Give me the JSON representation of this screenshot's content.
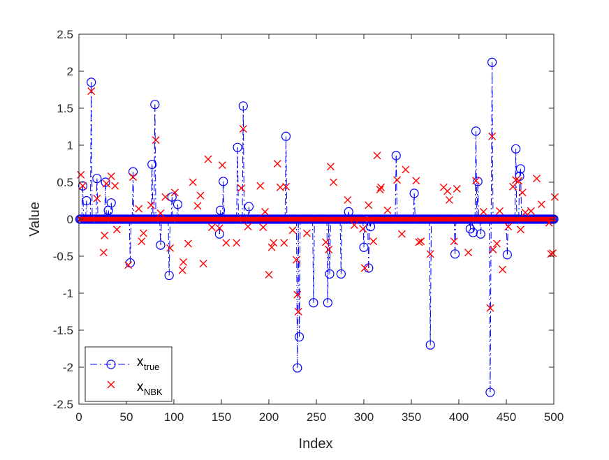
{
  "chart_data": {
    "type": "scatter",
    "title": "",
    "xlabel": "Index",
    "ylabel": "Value",
    "xlim": [
      0,
      500
    ],
    "ylim": [
      -2.5,
      2.5
    ],
    "xticks": [
      "0",
      "50",
      "100",
      "150",
      "200",
      "250",
      "300",
      "350",
      "400",
      "450",
      "500"
    ],
    "yticks": [
      "-2.5",
      "-2",
      "-1.5",
      "-1",
      "-0.5",
      "0",
      "0.5",
      "1",
      "1.5",
      "2",
      "2.5"
    ],
    "grid": false,
    "legend_position": "bottom-left",
    "colors": {
      "x_true": "#0000ff",
      "x_NBK": "#ff0000",
      "axis": "#262626"
    },
    "series": [
      {
        "name": "x_true",
        "label_main": "x",
        "label_sub": "true",
        "marker": "circle",
        "line": "dash-dot stems",
        "n": 500,
        "nonzero": [
          [
            4,
            0.45
          ],
          [
            8,
            0.25
          ],
          [
            13,
            1.85
          ],
          [
            19,
            0.55
          ],
          [
            28,
            0.5
          ],
          [
            31,
            0.12
          ],
          [
            34,
            0.22
          ],
          [
            54,
            -0.59
          ],
          [
            57,
            0.64
          ],
          [
            77,
            0.74
          ],
          [
            80,
            1.55
          ],
          [
            86,
            -0.35
          ],
          [
            95,
            -0.76
          ],
          [
            98,
            0.3
          ],
          [
            104,
            0.2
          ],
          [
            148,
            -0.2
          ],
          [
            149,
            0.12
          ],
          [
            152,
            0.51
          ],
          [
            167,
            0.97
          ],
          [
            173,
            1.53
          ],
          [
            179,
            0.17
          ],
          [
            218,
            1.12
          ],
          [
            230,
            -2.01
          ],
          [
            232,
            -1.59
          ],
          [
            247,
            -1.13
          ],
          [
            262,
            -1.13
          ],
          [
            264,
            -0.74
          ],
          [
            276,
            -0.74
          ],
          [
            284,
            0.1
          ],
          [
            300,
            -0.38
          ],
          [
            305,
            -0.66
          ],
          [
            307,
            -0.1
          ],
          [
            334,
            0.86
          ],
          [
            353,
            0.35
          ],
          [
            370,
            -1.7
          ],
          [
            396,
            -0.47
          ],
          [
            412,
            -0.13
          ],
          [
            415,
            -0.18
          ],
          [
            418,
            1.19
          ],
          [
            420,
            0.51
          ],
          [
            423,
            -0.2
          ],
          [
            433,
            -2.34
          ],
          [
            435,
            2.12
          ],
          [
            451,
            -0.48
          ],
          [
            460,
            0.95
          ],
          [
            464,
            0.58
          ],
          [
            465,
            0.68
          ]
        ]
      },
      {
        "name": "x_NBK",
        "label_main": "x",
        "label_sub": "NBK",
        "marker": "cross",
        "points": [
          [
            2,
            0.6
          ],
          [
            4,
            0.45
          ],
          [
            13,
            1.73
          ],
          [
            19,
            0.28
          ],
          [
            26,
            -0.45
          ],
          [
            27,
            -0.22
          ],
          [
            29,
            0.48
          ],
          [
            34,
            0.58
          ],
          [
            38,
            0.45
          ],
          [
            40,
            -0.14
          ],
          [
            52,
            -0.62
          ],
          [
            57,
            0.57
          ],
          [
            63,
            0.14
          ],
          [
            66,
            -0.3
          ],
          [
            68,
            -0.19
          ],
          [
            76,
            0.19
          ],
          [
            81,
            1.07
          ],
          [
            86,
            0.08
          ],
          [
            91,
            0.3
          ],
          [
            96,
            -0.39
          ],
          [
            101,
            0.36
          ],
          [
            109,
            -0.69
          ],
          [
            110,
            -0.58
          ],
          [
            115,
            -0.33
          ],
          [
            120,
            0.5
          ],
          [
            125,
            0.18
          ],
          [
            128,
            0.32
          ],
          [
            131,
            -0.6
          ],
          [
            136,
            0.81
          ],
          [
            140,
            -0.11
          ],
          [
            148,
            -0.12
          ],
          [
            151,
            0.73
          ],
          [
            155,
            -0.32
          ],
          [
            166,
            -0.32
          ],
          [
            171,
            0.42
          ],
          [
            173,
            1.22
          ],
          [
            178,
            -0.1
          ],
          [
            191,
            0.45
          ],
          [
            194,
            -0.11
          ],
          [
            196,
            0.1
          ],
          [
            200,
            -0.75
          ],
          [
            203,
            -0.38
          ],
          [
            205,
            -0.32
          ],
          [
            209,
            0.75
          ],
          [
            212,
            0.43
          ],
          [
            216,
            -0.32
          ],
          [
            218,
            0.44
          ],
          [
            225,
            -0.15
          ],
          [
            229,
            -0.55
          ],
          [
            230,
            -1.02
          ],
          [
            231,
            -1.25
          ],
          [
            240,
            -0.19
          ],
          [
            260,
            -0.31
          ],
          [
            263,
            -0.41
          ],
          [
            265,
            0.71
          ],
          [
            268,
            0.5
          ],
          [
            283,
            0.26
          ],
          [
            290,
            -0.08
          ],
          [
            299,
            -0.13
          ],
          [
            301,
            -0.66
          ],
          [
            305,
            0.19
          ],
          [
            310,
            -0.3
          ],
          [
            314,
            0.86
          ],
          [
            317,
            0.4
          ],
          [
            318,
            0.43
          ],
          [
            325,
            0.12
          ],
          [
            335,
            0.53
          ],
          [
            340,
            -0.2
          ],
          [
            344,
            0.67
          ],
          [
            355,
            0.52
          ],
          [
            358,
            -0.31
          ],
          [
            360,
            -0.3
          ],
          [
            370,
            -0.47
          ],
          [
            384,
            0.43
          ],
          [
            388,
            0.38
          ],
          [
            390,
            0.26
          ],
          [
            395,
            -0.3
          ],
          [
            398,
            0.41
          ],
          [
            410,
            -0.45
          ],
          [
            418,
            0.52
          ],
          [
            426,
            0.1
          ],
          [
            433,
            -1.2
          ],
          [
            435,
            1.12
          ],
          [
            436,
            -0.41
          ],
          [
            440,
            -0.33
          ],
          [
            443,
            0.11
          ],
          [
            446,
            -0.68
          ],
          [
            452,
            -0.1
          ],
          [
            457,
            0.44
          ],
          [
            460,
            0.53
          ],
          [
            463,
            0.52
          ],
          [
            465,
            -0.14
          ],
          [
            467,
            0.36
          ],
          [
            470,
            0.09
          ],
          [
            476,
            0.11
          ],
          [
            482,
            0.55
          ],
          [
            487,
            0.2
          ],
          [
            495,
            -0.05
          ],
          [
            497,
            -0.47
          ],
          [
            499,
            -0.46
          ],
          [
            501,
            0.3
          ]
        ]
      }
    ]
  }
}
